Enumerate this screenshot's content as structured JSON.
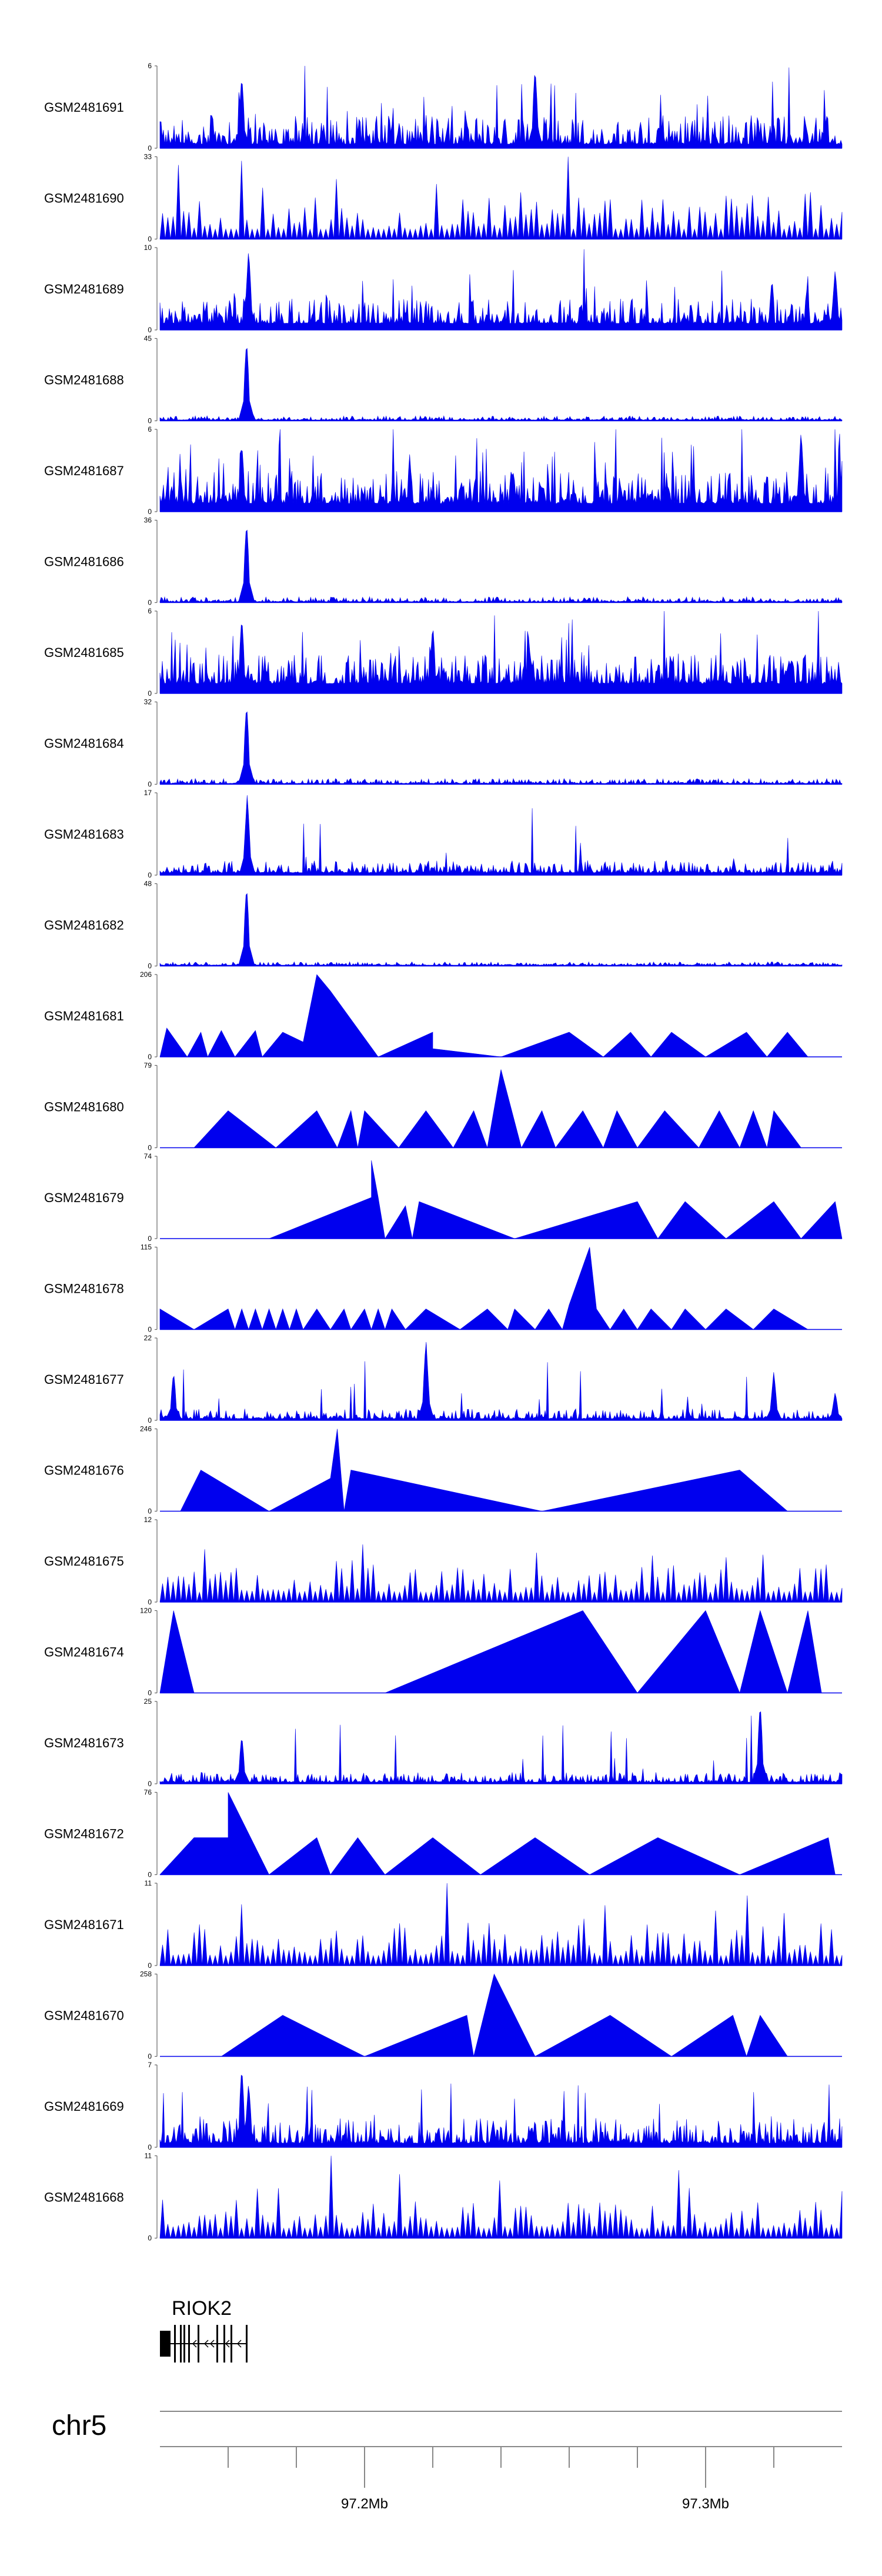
{
  "colors": {
    "signal": "#0000ee",
    "axis": "#666666",
    "gene": "#000000"
  },
  "chart_data": {
    "type": "area",
    "title": "",
    "region": {
      "chrom": "chr5",
      "start_mb": 97.14,
      "end_mb": 97.34
    },
    "gene": {
      "name": "RIOK2",
      "strand": "-",
      "start_mb": 97.14,
      "end_mb": 97.165
    },
    "chrom_label": "chr5",
    "x_ticks_mb": [
      97.16,
      97.18,
      97.2,
      97.22,
      97.24,
      97.26,
      97.28,
      97.3,
      97.32
    ],
    "x_tick_labels": [
      {
        "mb": 97.2,
        "label": "97.2Mb"
      },
      {
        "mb": 97.3,
        "label": "97.3Mb"
      }
    ],
    "tracks": [
      {
        "name": "GSM2481691",
        "ymax": "6",
        "ymin": "0",
        "style": "dense",
        "seed": 11,
        "baseline": 0.05,
        "noise": 0.35,
        "spike": 0.08,
        "peaks": [
          [
            0.12,
            0.9
          ],
          [
            0.55,
            1.0
          ]
        ]
      },
      {
        "name": "GSM2481690",
        "ymax": "33",
        "ymin": "0",
        "style": "sparse",
        "seed": 23,
        "noise": 0.45,
        "spike": 0.1,
        "peaks": [
          [
            0.03,
            0.9
          ],
          [
            0.12,
            0.95
          ],
          [
            0.6,
            1.0
          ]
        ]
      },
      {
        "name": "GSM2481689",
        "ymax": "10",
        "ymin": "0",
        "style": "dense",
        "seed": 37,
        "baseline": 0.08,
        "noise": 0.3,
        "spike": 0.06,
        "peaks": [
          [
            0.13,
            1.0
          ],
          [
            0.99,
            0.75
          ]
        ]
      },
      {
        "name": "GSM2481688",
        "ymax": "45",
        "ymin": "0",
        "style": "dense",
        "seed": 41,
        "baseline": 0.01,
        "noise": 0.05,
        "spike": 0.0,
        "peaks": [
          [
            0.127,
            1.0
          ]
        ]
      },
      {
        "name": "GSM2481687",
        "ymax": "6",
        "ymin": "0",
        "style": "dense",
        "seed": 53,
        "baseline": 0.1,
        "noise": 0.4,
        "spike": 0.08,
        "peaks": [
          [
            0.12,
            0.85
          ],
          [
            0.94,
            1.0
          ]
        ]
      },
      {
        "name": "GSM2481686",
        "ymax": "36",
        "ymin": "0",
        "style": "dense",
        "seed": 61,
        "baseline": 0.01,
        "noise": 0.06,
        "spike": 0.0,
        "peaks": [
          [
            0.127,
            1.0
          ]
        ]
      },
      {
        "name": "GSM2481685",
        "ymax": "6",
        "ymin": "0",
        "style": "dense",
        "seed": 71,
        "baseline": 0.12,
        "noise": 0.35,
        "spike": 0.07,
        "peaks": [
          [
            0.12,
            0.95
          ],
          [
            0.4,
            0.85
          ]
        ]
      },
      {
        "name": "GSM2481684",
        "ymax": "32",
        "ymin": "0",
        "style": "dense",
        "seed": 79,
        "baseline": 0.01,
        "noise": 0.06,
        "spike": 0.0,
        "peaks": [
          [
            0.127,
            1.0
          ]
        ]
      },
      {
        "name": "GSM2481683",
        "ymax": "17",
        "ymin": "0",
        "style": "dense",
        "seed": 83,
        "baseline": 0.03,
        "noise": 0.15,
        "spike": 0.02,
        "peaks": [
          [
            0.128,
            1.0
          ]
        ]
      },
      {
        "name": "GSM2481682",
        "ymax": "48",
        "ymin": "0",
        "style": "dense",
        "seed": 89,
        "baseline": 0.01,
        "noise": 0.04,
        "spike": 0.0,
        "peaks": [
          [
            0.127,
            1.0
          ]
        ]
      },
      {
        "name": "GSM2481681",
        "ymax": "206",
        "ymin": "0",
        "style": "triangles",
        "points": [
          [
            0.0,
            0
          ],
          [
            0.01,
            0.35
          ],
          [
            0.04,
            0
          ],
          [
            0.06,
            0.3
          ],
          [
            0.07,
            0
          ],
          [
            0.09,
            0.32
          ],
          [
            0.11,
            0
          ],
          [
            0.14,
            0.32
          ],
          [
            0.15,
            0
          ],
          [
            0.18,
            0.3
          ],
          [
            0.21,
            0.18
          ],
          [
            0.23,
            1.0
          ],
          [
            0.25,
            0.8
          ],
          [
            0.32,
            0
          ],
          [
            0.4,
            0.3
          ],
          [
            0.4,
            0.1
          ],
          [
            0.5,
            0
          ],
          [
            0.6,
            0.3
          ],
          [
            0.65,
            0
          ],
          [
            0.69,
            0.3
          ],
          [
            0.72,
            0
          ],
          [
            0.75,
            0.3
          ],
          [
            0.8,
            0
          ],
          [
            0.86,
            0.3
          ],
          [
            0.89,
            0
          ],
          [
            0.92,
            0.3
          ],
          [
            0.95,
            0
          ]
        ]
      },
      {
        "name": "GSM2481680",
        "ymax": "79",
        "ymin": "0",
        "style": "triangles",
        "points": [
          [
            0.05,
            0
          ],
          [
            0.1,
            0.45
          ],
          [
            0.17,
            0
          ],
          [
            0.23,
            0.45
          ],
          [
            0.26,
            0
          ],
          [
            0.28,
            0.45
          ],
          [
            0.29,
            0
          ],
          [
            0.3,
            0.45
          ],
          [
            0.35,
            0
          ],
          [
            0.39,
            0.45
          ],
          [
            0.43,
            0
          ],
          [
            0.46,
            0.45
          ],
          [
            0.48,
            0
          ],
          [
            0.5,
            0.95
          ],
          [
            0.53,
            0
          ],
          [
            0.56,
            0.45
          ],
          [
            0.58,
            0
          ],
          [
            0.62,
            0.45
          ],
          [
            0.65,
            0
          ],
          [
            0.67,
            0.45
          ],
          [
            0.7,
            0
          ],
          [
            0.74,
            0.45
          ],
          [
            0.79,
            0
          ],
          [
            0.82,
            0.45
          ],
          [
            0.85,
            0
          ],
          [
            0.87,
            0.45
          ],
          [
            0.89,
            0
          ],
          [
            0.9,
            0.45
          ],
          [
            0.94,
            0
          ]
        ]
      },
      {
        "name": "GSM2481679",
        "ymax": "74",
        "ymin": "0",
        "style": "triangles",
        "points": [
          [
            0.16,
            0
          ],
          [
            0.31,
            0.5
          ],
          [
            0.31,
            0.95
          ],
          [
            0.32,
            0.5
          ],
          [
            0.33,
            0
          ],
          [
            0.36,
            0.4
          ],
          [
            0.37,
            0
          ],
          [
            0.38,
            0.45
          ],
          [
            0.52,
            0
          ],
          [
            0.56,
            0.1
          ],
          [
            0.7,
            0.45
          ],
          [
            0.73,
            0
          ],
          [
            0.77,
            0.45
          ],
          [
            0.83,
            0
          ],
          [
            0.9,
            0.45
          ],
          [
            0.94,
            0
          ],
          [
            0.99,
            0.45
          ],
          [
            1.0,
            0
          ]
        ]
      },
      {
        "name": "GSM2481678",
        "ymax": "115",
        "ymin": "0",
        "style": "triangles",
        "points": [
          [
            0.0,
            0
          ],
          [
            0.0,
            0.25
          ],
          [
            0.05,
            0
          ],
          [
            0.1,
            0.25
          ],
          [
            0.11,
            0
          ],
          [
            0.12,
            0.25
          ],
          [
            0.13,
            0
          ],
          [
            0.14,
            0.25
          ],
          [
            0.15,
            0
          ],
          [
            0.16,
            0.25
          ],
          [
            0.17,
            0
          ],
          [
            0.18,
            0.25
          ],
          [
            0.19,
            0
          ],
          [
            0.2,
            0.25
          ],
          [
            0.21,
            0
          ],
          [
            0.23,
            0.25
          ],
          [
            0.25,
            0
          ],
          [
            0.27,
            0.25
          ],
          [
            0.28,
            0
          ],
          [
            0.3,
            0.25
          ],
          [
            0.31,
            0
          ],
          [
            0.32,
            0.25
          ],
          [
            0.33,
            0
          ],
          [
            0.34,
            0.25
          ],
          [
            0.36,
            0
          ],
          [
            0.39,
            0.25
          ],
          [
            0.44,
            0
          ],
          [
            0.48,
            0.25
          ],
          [
            0.51,
            0
          ],
          [
            0.52,
            0.25
          ],
          [
            0.55,
            0
          ],
          [
            0.57,
            0.25
          ],
          [
            0.59,
            0
          ],
          [
            0.6,
            0.3
          ],
          [
            0.63,
            1.0
          ],
          [
            0.64,
            0.25
          ],
          [
            0.66,
            0
          ],
          [
            0.68,
            0.25
          ],
          [
            0.7,
            0
          ],
          [
            0.72,
            0.25
          ],
          [
            0.75,
            0
          ],
          [
            0.77,
            0.25
          ],
          [
            0.8,
            0
          ],
          [
            0.83,
            0.25
          ],
          [
            0.87,
            0
          ],
          [
            0.9,
            0.25
          ],
          [
            0.95,
            0
          ]
        ]
      },
      {
        "name": "GSM2481677",
        "ymax": "22",
        "ymin": "0",
        "style": "dense",
        "seed": 97,
        "baseline": 0.02,
        "noise": 0.12,
        "spike": 0.02,
        "peaks": [
          [
            0.02,
            0.6
          ],
          [
            0.39,
            1.0
          ],
          [
            0.9,
            0.6
          ],
          [
            0.99,
            0.35
          ]
        ]
      },
      {
        "name": "GSM2481676",
        "ymax": "246",
        "ymin": "0",
        "style": "triangles",
        "points": [
          [
            0.03,
            0
          ],
          [
            0.06,
            0.5
          ],
          [
            0.16,
            0
          ],
          [
            0.25,
            0.4
          ],
          [
            0.26,
            1.0
          ],
          [
            0.27,
            0
          ],
          [
            0.28,
            0.5
          ],
          [
            0.56,
            0
          ],
          [
            0.85,
            0.5
          ],
          [
            0.92,
            0
          ]
        ]
      },
      {
        "name": "GSM2481675",
        "ymax": "12",
        "ymin": "0",
        "style": "sparse",
        "seed": 101,
        "noise": 0.35,
        "spike": 0.08,
        "peaks": [
          [
            0.2,
            1.0
          ],
          [
            0.3,
            0.7
          ],
          [
            0.55,
            0.6
          ]
        ]
      },
      {
        "name": "GSM2481674",
        "ymax": "120",
        "ymin": "0",
        "style": "triangles",
        "points": [
          [
            0.0,
            0
          ],
          [
            0.02,
            1.0
          ],
          [
            0.05,
            0
          ],
          [
            0.33,
            0
          ],
          [
            0.62,
            1.0
          ],
          [
            0.7,
            0
          ],
          [
            0.8,
            1.0
          ],
          [
            0.85,
            0
          ],
          [
            0.88,
            1.0
          ],
          [
            0.92,
            0
          ],
          [
            0.95,
            1.0
          ],
          [
            0.97,
            0
          ]
        ]
      },
      {
        "name": "GSM2481673",
        "ymax": "25",
        "ymin": "0",
        "style": "dense",
        "seed": 113,
        "baseline": 0.02,
        "noise": 0.12,
        "spike": 0.02,
        "peaks": [
          [
            0.12,
            0.6
          ],
          [
            0.88,
            1.0
          ]
        ]
      },
      {
        "name": "GSM2481672",
        "ymax": "76",
        "ymin": "0",
        "style": "triangles",
        "points": [
          [
            0.0,
            0
          ],
          [
            0.05,
            0.45
          ],
          [
            0.1,
            0.45
          ],
          [
            0.1,
            1.0
          ],
          [
            0.16,
            0
          ],
          [
            0.23,
            0.45
          ],
          [
            0.25,
            0
          ],
          [
            0.29,
            0.45
          ],
          [
            0.33,
            0
          ],
          [
            0.4,
            0.45
          ],
          [
            0.47,
            0
          ],
          [
            0.55,
            0.45
          ],
          [
            0.63,
            0
          ],
          [
            0.73,
            0.45
          ],
          [
            0.85,
            0
          ],
          [
            0.98,
            0.45
          ],
          [
            0.99,
            0
          ]
        ]
      },
      {
        "name": "GSM2481671",
        "ymax": "11",
        "ymin": "0",
        "style": "sparse",
        "seed": 127,
        "noise": 0.4,
        "spike": 0.1,
        "peaks": [
          [
            0.42,
            1.0
          ],
          [
            0.86,
            0.85
          ]
        ]
      },
      {
        "name": "GSM2481670",
        "ymax": "258",
        "ymin": "0",
        "style": "triangles",
        "points": [
          [
            0.09,
            0
          ],
          [
            0.18,
            0.5
          ],
          [
            0.3,
            0
          ],
          [
            0.45,
            0.5
          ],
          [
            0.46,
            0
          ],
          [
            0.49,
            1.0
          ],
          [
            0.55,
            0
          ],
          [
            0.66,
            0.5
          ],
          [
            0.75,
            0
          ],
          [
            0.84,
            0.5
          ],
          [
            0.86,
            0
          ],
          [
            0.88,
            0.5
          ],
          [
            0.92,
            0
          ]
        ]
      },
      {
        "name": "GSM2481669",
        "ymax": "7",
        "ymin": "0",
        "style": "dense",
        "seed": 131,
        "baseline": 0.05,
        "noise": 0.3,
        "spike": 0.05,
        "peaks": [
          [
            0.12,
            1.0
          ],
          [
            0.13,
            0.8
          ]
        ]
      },
      {
        "name": "GSM2481668",
        "ymax": "11",
        "ymin": "0",
        "style": "sparse",
        "seed": 137,
        "noise": 0.35,
        "spike": 0.08,
        "peaks": [
          [
            0.25,
            1.0
          ],
          [
            0.5,
            0.7
          ]
        ]
      }
    ]
  }
}
